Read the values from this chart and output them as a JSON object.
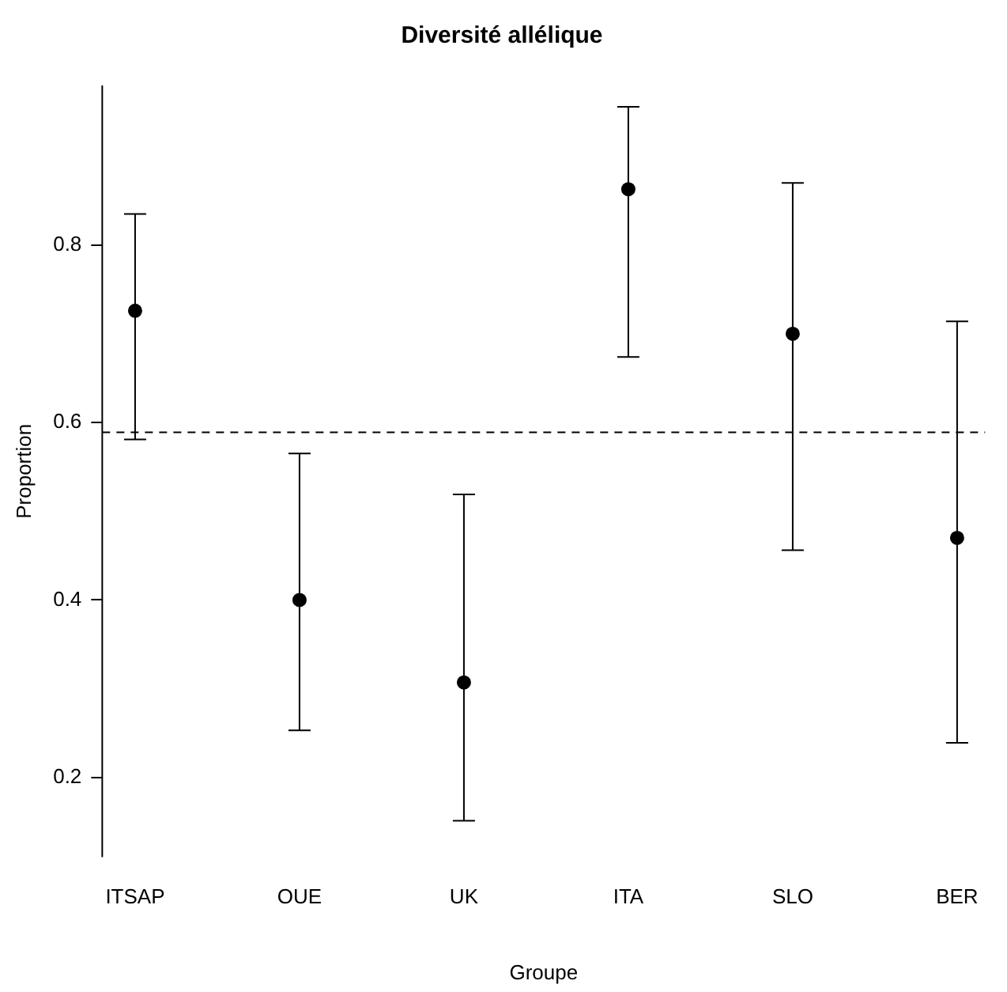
{
  "chart_data": {
    "type": "scatter",
    "title": "Diversité allélique",
    "xlabel": "Groupe",
    "ylabel": "Proportion",
    "categories": [
      "ITSAP",
      "OUE",
      "UK",
      "ITA",
      "SLO",
      "BER"
    ],
    "values": [
      0.726,
      0.4,
      0.307,
      0.863,
      0.7,
      0.47
    ],
    "errors": [
      [
        0.581,
        0.835
      ],
      [
        0.253,
        0.565
      ],
      [
        0.151,
        0.519
      ],
      [
        0.674,
        0.956
      ],
      [
        0.456,
        0.87
      ],
      [
        0.239,
        0.714
      ]
    ],
    "color": "#000000",
    "marker": "circle",
    "ylim": [
      0.11,
      0.98
    ],
    "yticks": [
      0.2,
      0.4,
      0.6,
      0.8
    ],
    "ref_lines": [
      {
        "axis": "y",
        "value": 0.589,
        "color": "#000000",
        "line_style": "dashed"
      }
    ],
    "grid": false,
    "legend": false
  }
}
